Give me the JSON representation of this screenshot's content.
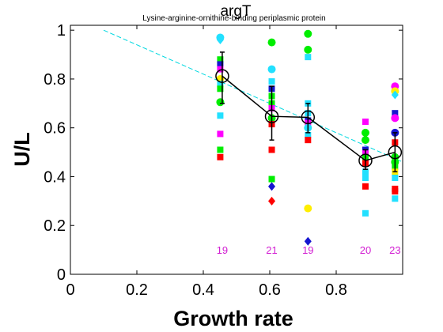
{
  "chart_data": {
    "type": "scatter",
    "title": "argT",
    "subtitle": "Lysine-arginine-ornithine-binding periplasmic protein",
    "xlabel": "Growth rate",
    "ylabel": "U/L",
    "xlim": [
      0,
      1.0
    ],
    "ylim": [
      0,
      1.02
    ],
    "xticks": [
      0,
      0.2,
      0.4,
      0.6,
      0.8
    ],
    "xtick_labels": [
      "0",
      "0.2",
      "0.4",
      "0.6",
      "0.8"
    ],
    "yticks": [
      0,
      0.2,
      0.4,
      0.6,
      0.8,
      1
    ],
    "ytick_labels": [
      "0",
      "0.2",
      "0.4",
      "0.6",
      "0.8",
      "1"
    ],
    "grid": false,
    "fit_line": {
      "x": [
        0.1,
        1.0
      ],
      "y": [
        1.0,
        0.46
      ],
      "color": "#00d8e0"
    },
    "mean_series": {
      "x": [
        0.457,
        0.606,
        0.715,
        0.888,
        0.977
      ],
      "y": [
        0.812,
        0.647,
        0.643,
        0.466,
        0.5
      ],
      "err_low": [
        0.7,
        0.55,
        0.58,
        0.43,
        0.42
      ],
      "err_high": [
        0.91,
        0.77,
        0.7,
        0.51,
        0.58
      ]
    },
    "counts": [
      {
        "x": 0.457,
        "label": "19"
      },
      {
        "x": 0.606,
        "label": "21"
      },
      {
        "x": 0.715,
        "label": "19"
      },
      {
        "x": 0.888,
        "label": "20"
      },
      {
        "x": 0.977,
        "label": "23"
      }
    ],
    "points": [
      {
        "x": 0.451,
        "y": 0.97,
        "shape": "circle",
        "color": "#22e0ff"
      },
      {
        "x": 0.451,
        "y": 0.96,
        "shape": "diamond",
        "color": "#22e0ff"
      },
      {
        "x": 0.451,
        "y": 0.88,
        "shape": "square",
        "color": "#00ee00"
      },
      {
        "x": 0.451,
        "y": 0.86,
        "shape": "square",
        "color": "#1515d0"
      },
      {
        "x": 0.451,
        "y": 0.84,
        "shape": "square",
        "color": "#ff00ff"
      },
      {
        "x": 0.451,
        "y": 0.8,
        "shape": "circle",
        "color": "#ffee00"
      },
      {
        "x": 0.451,
        "y": 0.78,
        "shape": "square",
        "color": "#22e0ff"
      },
      {
        "x": 0.451,
        "y": 0.76,
        "shape": "square",
        "color": "#00ee00"
      },
      {
        "x": 0.451,
        "y": 0.705,
        "shape": "circle",
        "color": "#00ee00"
      },
      {
        "x": 0.451,
        "y": 0.65,
        "shape": "square",
        "color": "#22e0ff"
      },
      {
        "x": 0.451,
        "y": 0.575,
        "shape": "square",
        "color": "#ff00ff"
      },
      {
        "x": 0.451,
        "y": 0.51,
        "shape": "square",
        "color": "#00ee00"
      },
      {
        "x": 0.451,
        "y": 0.48,
        "shape": "square",
        "color": "#ff0000"
      },
      {
        "x": 0.606,
        "y": 0.95,
        "shape": "circle",
        "color": "#00ee00"
      },
      {
        "x": 0.606,
        "y": 0.84,
        "shape": "circle",
        "color": "#22e0ff"
      },
      {
        "x": 0.606,
        "y": 0.79,
        "shape": "square",
        "color": "#22e0ff"
      },
      {
        "x": 0.606,
        "y": 0.76,
        "shape": "square",
        "color": "#1515d0"
      },
      {
        "x": 0.606,
        "y": 0.73,
        "shape": "square",
        "color": "#00ee00"
      },
      {
        "x": 0.606,
        "y": 0.7,
        "shape": "square",
        "color": "#00ee00"
      },
      {
        "x": 0.606,
        "y": 0.68,
        "shape": "square",
        "color": "#ff00ff"
      },
      {
        "x": 0.606,
        "y": 0.64,
        "shape": "circle",
        "color": "#00ee00"
      },
      {
        "x": 0.606,
        "y": 0.615,
        "shape": "square",
        "color": "#ff0000"
      },
      {
        "x": 0.606,
        "y": 0.51,
        "shape": "square",
        "color": "#ff0000"
      },
      {
        "x": 0.606,
        "y": 0.39,
        "shape": "square",
        "color": "#00ee00"
      },
      {
        "x": 0.606,
        "y": 0.36,
        "shape": "diamond",
        "color": "#1515d0"
      },
      {
        "x": 0.606,
        "y": 0.3,
        "shape": "diamond",
        "color": "#ff0000"
      },
      {
        "x": 0.715,
        "y": 0.985,
        "shape": "circle",
        "color": "#00ee00"
      },
      {
        "x": 0.715,
        "y": 0.92,
        "shape": "circle",
        "color": "#00ee00"
      },
      {
        "x": 0.715,
        "y": 0.89,
        "shape": "square",
        "color": "#22e0ff"
      },
      {
        "x": 0.715,
        "y": 0.7,
        "shape": "square",
        "color": "#22e0ff"
      },
      {
        "x": 0.715,
        "y": 0.66,
        "shape": "square",
        "color": "#22e0ff"
      },
      {
        "x": 0.715,
        "y": 0.63,
        "shape": "square",
        "color": "#1515d0"
      },
      {
        "x": 0.715,
        "y": 0.62,
        "shape": "square",
        "color": "#ff00ff"
      },
      {
        "x": 0.715,
        "y": 0.6,
        "shape": "circle",
        "color": "#22e0ff"
      },
      {
        "x": 0.715,
        "y": 0.57,
        "shape": "square",
        "color": "#22e0ff"
      },
      {
        "x": 0.715,
        "y": 0.55,
        "shape": "square",
        "color": "#ff0000"
      },
      {
        "x": 0.715,
        "y": 0.27,
        "shape": "circle",
        "color": "#ffee00"
      },
      {
        "x": 0.715,
        "y": 0.135,
        "shape": "diamond",
        "color": "#1515d0"
      },
      {
        "x": 0.888,
        "y": 0.625,
        "shape": "square",
        "color": "#ff00ff"
      },
      {
        "x": 0.888,
        "y": 0.58,
        "shape": "circle",
        "color": "#00ee00"
      },
      {
        "x": 0.888,
        "y": 0.55,
        "shape": "circle",
        "color": "#00ee00"
      },
      {
        "x": 0.888,
        "y": 0.51,
        "shape": "square",
        "color": "#1515d0"
      },
      {
        "x": 0.888,
        "y": 0.495,
        "shape": "square",
        "color": "#ff00ff"
      },
      {
        "x": 0.888,
        "y": 0.48,
        "shape": "square",
        "color": "#00ee00"
      },
      {
        "x": 0.888,
        "y": 0.455,
        "shape": "square",
        "color": "#ff0000"
      },
      {
        "x": 0.888,
        "y": 0.42,
        "shape": "square",
        "color": "#22e0ff"
      },
      {
        "x": 0.888,
        "y": 0.395,
        "shape": "square",
        "color": "#22e0ff"
      },
      {
        "x": 0.888,
        "y": 0.36,
        "shape": "square",
        "color": "#ff0000"
      },
      {
        "x": 0.888,
        "y": 0.25,
        "shape": "square",
        "color": "#22e0ff"
      },
      {
        "x": 0.977,
        "y": 0.77,
        "shape": "circle",
        "color": "#ff00ff"
      },
      {
        "x": 0.977,
        "y": 0.75,
        "shape": "circle",
        "color": "#ffee00"
      },
      {
        "x": 0.977,
        "y": 0.735,
        "shape": "diamond",
        "color": "#22e0ff"
      },
      {
        "x": 0.977,
        "y": 0.66,
        "shape": "square",
        "color": "#1515d0"
      },
      {
        "x": 0.977,
        "y": 0.64,
        "shape": "circle",
        "color": "#ff00ff"
      },
      {
        "x": 0.977,
        "y": 0.58,
        "shape": "circle",
        "color": "#1515d0"
      },
      {
        "x": 0.977,
        "y": 0.54,
        "shape": "square",
        "color": "#ff0000"
      },
      {
        "x": 0.977,
        "y": 0.48,
        "shape": "circle",
        "color": "#00ee00"
      },
      {
        "x": 0.977,
        "y": 0.46,
        "shape": "circle",
        "color": "#00ee00"
      },
      {
        "x": 0.977,
        "y": 0.44,
        "shape": "square",
        "color": "#00ee00"
      },
      {
        "x": 0.977,
        "y": 0.42,
        "shape": "square",
        "color": "#ffee00"
      },
      {
        "x": 0.977,
        "y": 0.395,
        "shape": "square",
        "color": "#22e0ff"
      },
      {
        "x": 0.977,
        "y": 0.35,
        "shape": "square",
        "color": "#ff0000"
      },
      {
        "x": 0.977,
        "y": 0.34,
        "shape": "square",
        "color": "#ff0000"
      },
      {
        "x": 0.977,
        "y": 0.31,
        "shape": "square",
        "color": "#22e0ff"
      }
    ]
  }
}
